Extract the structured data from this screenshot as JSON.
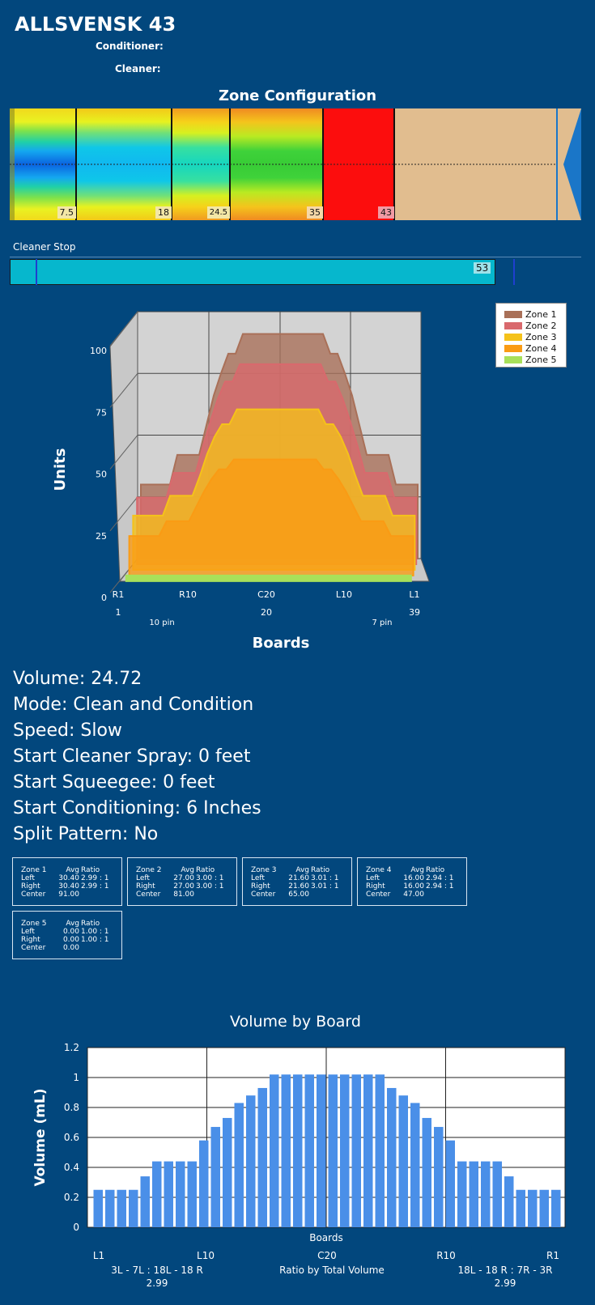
{
  "header": {
    "title": "ALLSVENSK 43",
    "conditioner_label": "Conditioner:",
    "cleaner_label": "Cleaner:"
  },
  "zone_config": {
    "title": "Zone Configuration",
    "markers": [
      "7.5",
      "18",
      "24.5",
      "35",
      "43"
    ]
  },
  "cleaner_stop": {
    "label": "Cleaner Stop",
    "value": "53"
  },
  "info": {
    "volume": "Volume: 24.72",
    "mode": "Mode: Clean and Condition",
    "speed": "Speed: Slow",
    "start_cleaner_spray": "Start Cleaner Spray: 0 feet",
    "start_squeegee": "Start Squeegee: 0 feet",
    "start_conditioning": "Start Conditioning: 6 Inches",
    "split_pattern": "Split Pattern: No"
  },
  "zone_stats": [
    {
      "name": "Zone 1",
      "avg_h": "Avg",
      "ratio_h": "Ratio",
      "left_label": "Left",
      "left_avg": "30.40",
      "left_ratio": "2.99 : 1",
      "right_label": "Right",
      "right_avg": "30.40",
      "right_ratio": "2.99 : 1",
      "center_label": "Center",
      "center_avg": "91.00"
    },
    {
      "name": "Zone 2",
      "avg_h": "Avg",
      "ratio_h": "Ratio",
      "left_label": "Left",
      "left_avg": "27.00",
      "left_ratio": "3.00 : 1",
      "right_label": "Right",
      "right_avg": "27.00",
      "right_ratio": "3.00 : 1",
      "center_label": "Center",
      "center_avg": "81.00"
    },
    {
      "name": "Zone 3",
      "avg_h": "Avg",
      "ratio_h": "Ratio",
      "left_label": "Left",
      "left_avg": "21.60",
      "left_ratio": "3.01 : 1",
      "right_label": "Right",
      "right_avg": "21.60",
      "right_ratio": "3.01 : 1",
      "center_label": "Center",
      "center_avg": "65.00"
    },
    {
      "name": "Zone 4",
      "avg_h": "Avg",
      "ratio_h": "Ratio",
      "left_label": "Left",
      "left_avg": "16.00",
      "left_ratio": "2.94 : 1",
      "right_label": "Right",
      "right_avg": "16.00",
      "right_ratio": "2.94 : 1",
      "center_label": "Center",
      "center_avg": "47.00"
    },
    {
      "name": "Zone 5",
      "avg_h": "Avg",
      "ratio_h": "Ratio",
      "left_label": "Left",
      "left_avg": "0.00",
      "left_ratio": "1.00 : 1",
      "right_label": "Right",
      "right_avg": "0.00",
      "right_ratio": "1.00 : 1",
      "center_label": "Center",
      "center_avg": "0.00"
    }
  ],
  "chart_data": [
    {
      "type": "area",
      "title": "",
      "xlabel": "Boards",
      "ylabel": "Units",
      "ylim": [
        0,
        100
      ],
      "yticks": [
        "0",
        "25",
        "50",
        "75",
        "100"
      ],
      "board_labels": [
        "R1",
        "R10",
        "C20",
        "L10",
        "L1"
      ],
      "board_numbers": [
        "1",
        "20",
        "39"
      ],
      "pin_labels": [
        "10 pin",
        "7 pin"
      ],
      "legend_position": "top-right",
      "colors": [
        "#a97058",
        "#d9696d",
        "#f5c21a",
        "#fa9b14",
        "#a8e05a"
      ],
      "series": [
        {
          "name": "Zone 1",
          "values": [
            30,
            30,
            30,
            30,
            30,
            42,
            42,
            42,
            42,
            54,
            66,
            75,
            83,
            83,
            91,
            91,
            91,
            91,
            91,
            91,
            91,
            91,
            91,
            91,
            91,
            91,
            83,
            83,
            75,
            66,
            54,
            42,
            42,
            42,
            42,
            30,
            30,
            30,
            30
          ]
        },
        {
          "name": "Zone 2",
          "values": [
            27,
            27,
            27,
            27,
            27,
            37,
            37,
            37,
            37,
            48,
            58,
            67,
            74,
            74,
            81,
            81,
            81,
            81,
            81,
            81,
            81,
            81,
            81,
            81,
            81,
            81,
            74,
            74,
            67,
            58,
            48,
            37,
            37,
            37,
            37,
            27,
            27,
            27,
            27
          ]
        },
        {
          "name": "Zone 3",
          "values": [
            22,
            22,
            22,
            22,
            22,
            30,
            30,
            30,
            30,
            38,
            47,
            54,
            59,
            59,
            65,
            65,
            65,
            65,
            65,
            65,
            65,
            65,
            65,
            65,
            65,
            65,
            59,
            59,
            54,
            47,
            38,
            30,
            30,
            30,
            30,
            22,
            22,
            22,
            22
          ]
        },
        {
          "name": "Zone 4",
          "values": [
            16,
            16,
            16,
            16,
            16,
            22,
            22,
            22,
            22,
            28,
            34,
            39,
            43,
            43,
            47,
            47,
            47,
            47,
            47,
            47,
            47,
            47,
            47,
            47,
            47,
            47,
            43,
            43,
            39,
            34,
            28,
            22,
            22,
            22,
            22,
            16,
            16,
            16,
            16
          ]
        },
        {
          "name": "Zone 5",
          "values": [
            0,
            0,
            0,
            0,
            0,
            0,
            0,
            0,
            0,
            0,
            0,
            0,
            0,
            0,
            0,
            0,
            0,
            0,
            0,
            0,
            0,
            0,
            0,
            0,
            0,
            0,
            0,
            0,
            0,
            0,
            0,
            0,
            0,
            0,
            0,
            0,
            0,
            0,
            0
          ]
        }
      ]
    },
    {
      "type": "bar",
      "title": "Volume by Board",
      "xlabel": "Boards",
      "ylabel": "Volume (mL)",
      "ylim": [
        0,
        1.2
      ],
      "yticks": [
        "0",
        "0.2",
        "0.4",
        "0.6",
        "0.8",
        "1",
        "1.2"
      ],
      "x_tick_labels": [
        "L1",
        "L10",
        "C20",
        "R10",
        "R1"
      ],
      "grid": true,
      "bar_color": "#4a8fe8",
      "values": [
        0.25,
        0.25,
        0.25,
        0.25,
        0.34,
        0.44,
        0.44,
        0.44,
        0.44,
        0.58,
        0.67,
        0.73,
        0.83,
        0.88,
        0.93,
        1.02,
        1.02,
        1.02,
        1.02,
        1.02,
        1.02,
        1.02,
        1.02,
        1.02,
        1.02,
        0.93,
        0.88,
        0.83,
        0.73,
        0.67,
        0.58,
        0.44,
        0.44,
        0.44,
        0.44,
        0.34,
        0.25,
        0.25,
        0.25,
        0.25
      ],
      "footer": {
        "left_ratio_label": "3L - 7L : 18L - 18 R",
        "left_ratio_value": "2.99",
        "center_label": "Ratio by Total Volume",
        "right_ratio_label": "18L - 18 R : 7R - 3R",
        "right_ratio_value": "2.99"
      }
    }
  ]
}
